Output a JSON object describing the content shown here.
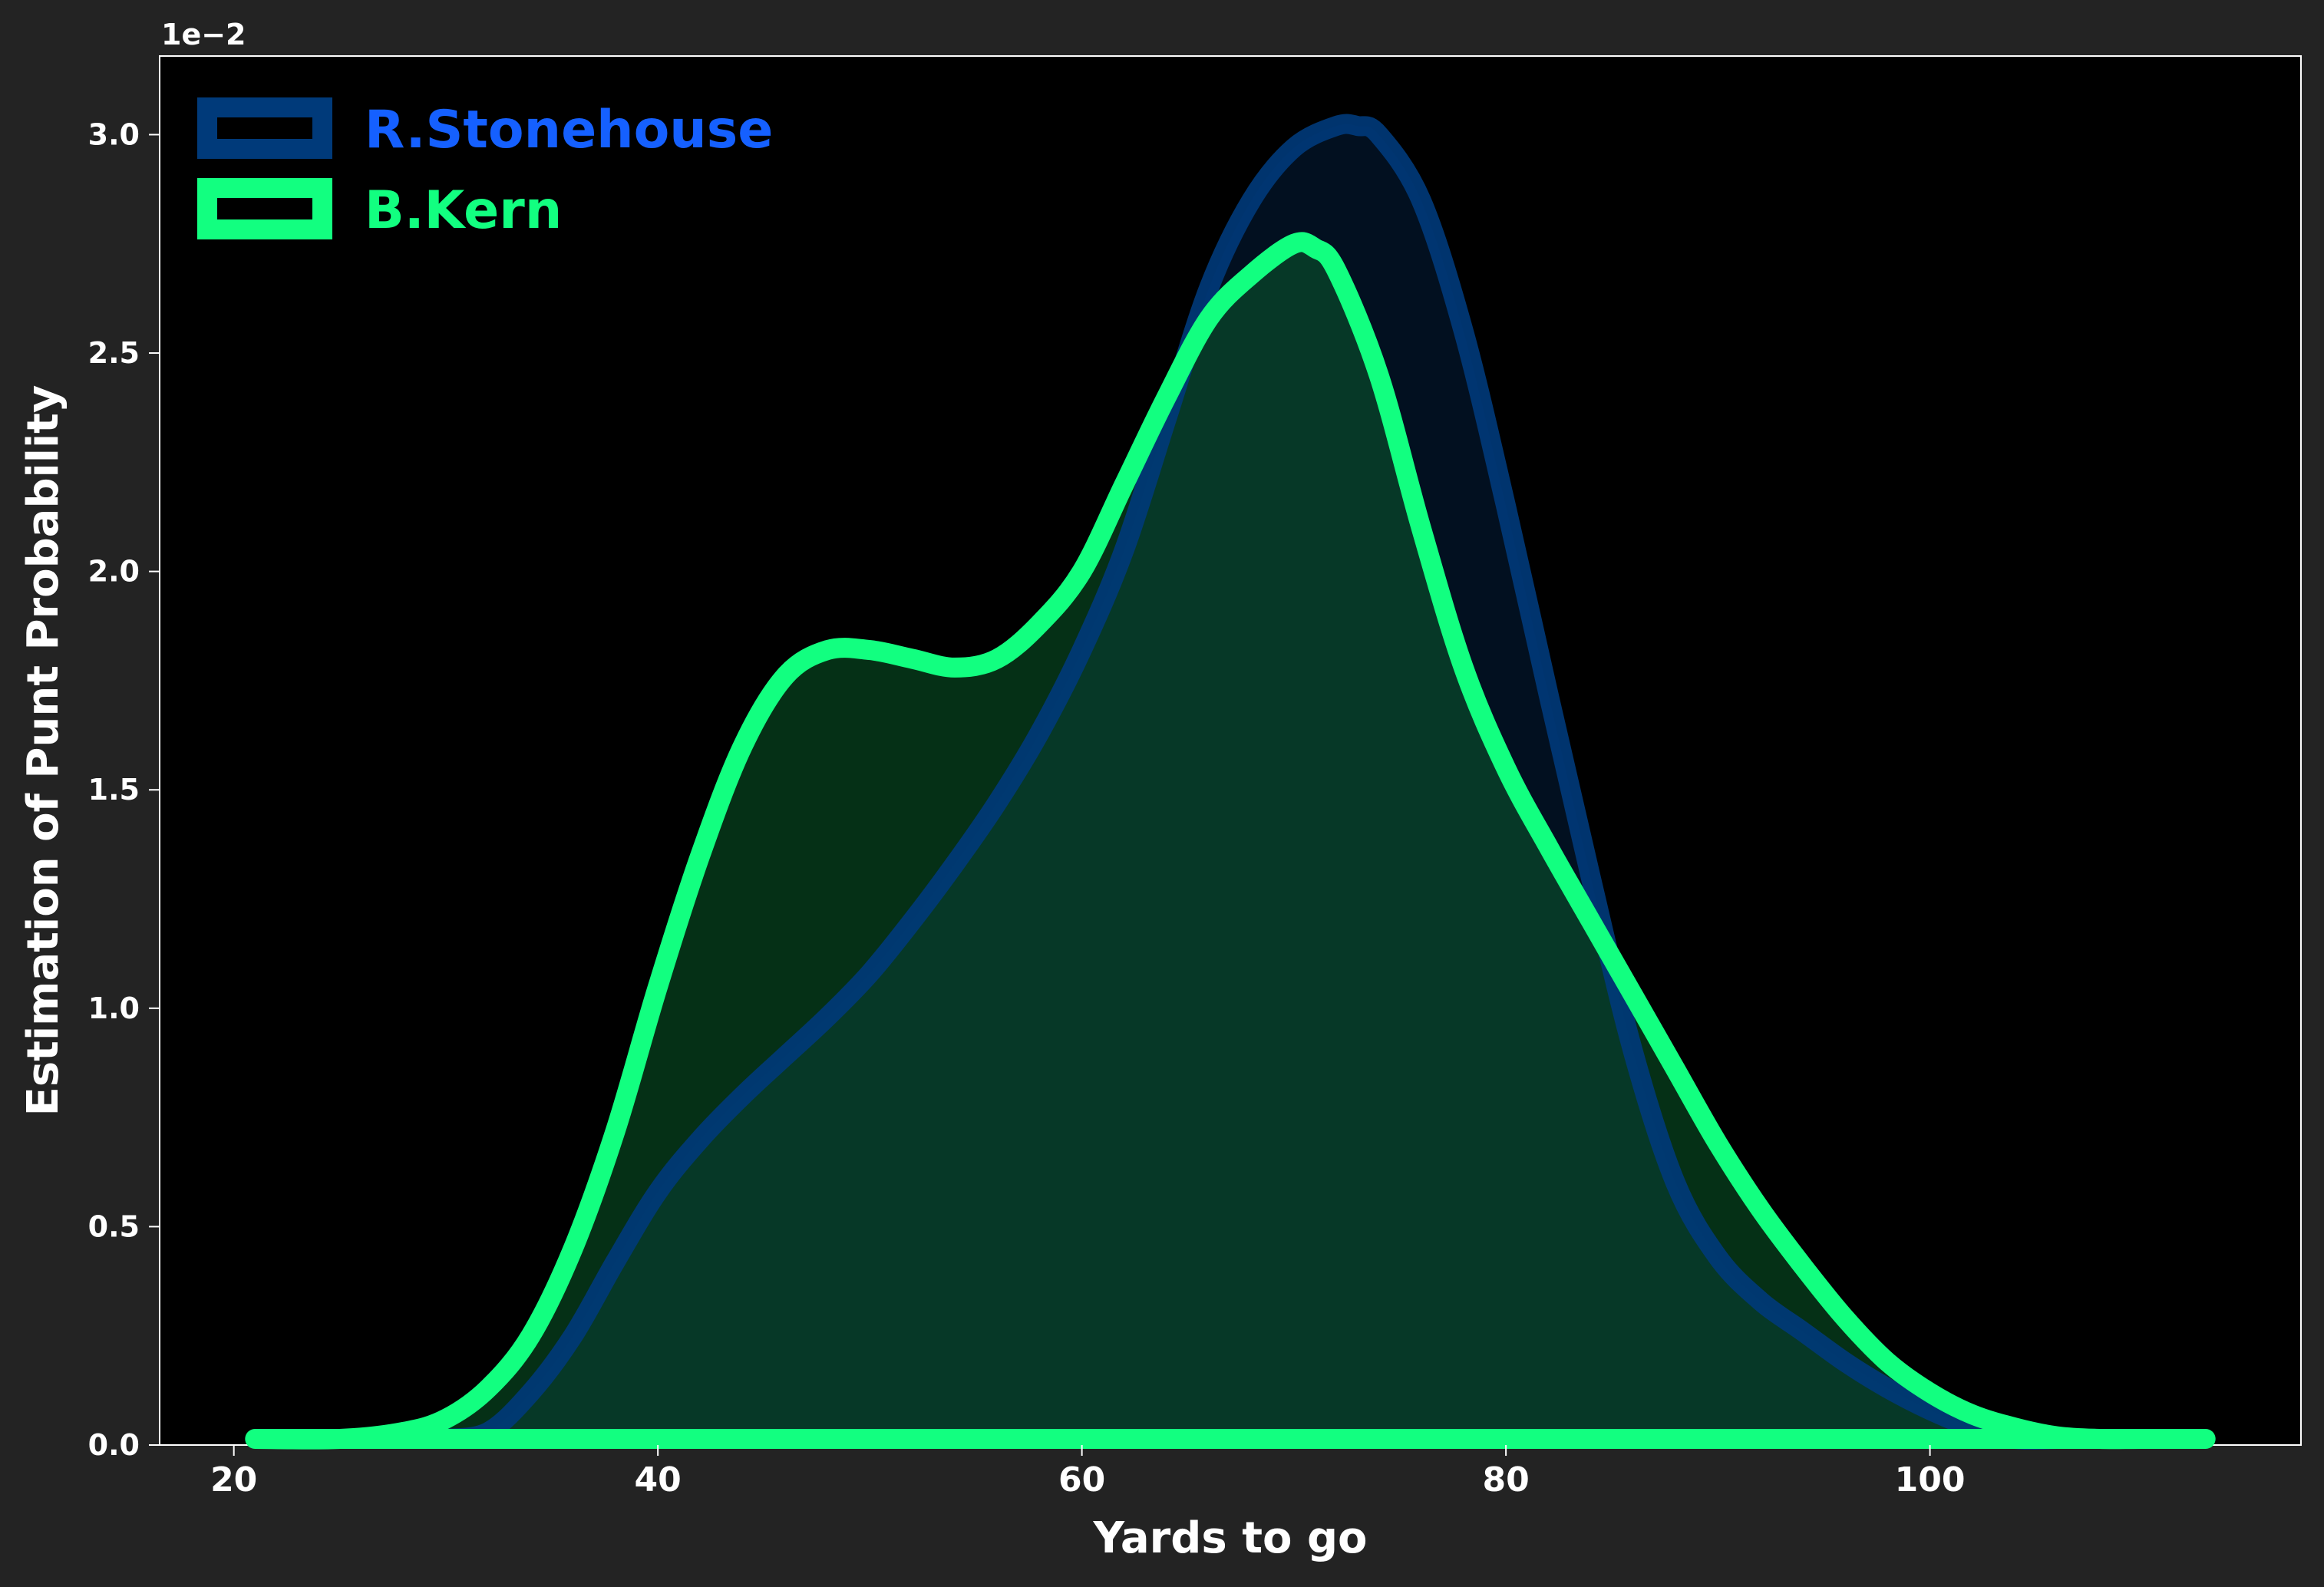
{
  "chart_data": {
    "type": "area",
    "xlabel": "Yards to go",
    "ylabel": "Estimation of Punt Probability",
    "y_offset_label": "1e−2",
    "xlim": [
      16.5,
      117.5
    ],
    "ylim": [
      0,
      3.18
    ],
    "x_ticks": [
      20,
      40,
      60,
      80,
      100
    ],
    "y_ticks": [
      0.0,
      0.5,
      1.0,
      1.5,
      2.0,
      2.5,
      3.0
    ],
    "legend_position": "top-left",
    "series": [
      {
        "name": "R.Stonehouse",
        "line_color": "#003a7a",
        "fill_color": "#0a4fa0",
        "legend_text_color": "#1560ff",
        "x": [
          30,
          32,
          34,
          36,
          38,
          40,
          42,
          44,
          46,
          48,
          50,
          52,
          54,
          56,
          58,
          60,
          62,
          64,
          66,
          68,
          70,
          72,
          73,
          74,
          76,
          78,
          80,
          82,
          84,
          86,
          88,
          90,
          92,
          94,
          96,
          98,
          100,
          102,
          104,
          106
        ],
        "values": [
          0.0,
          0.03,
          0.12,
          0.25,
          0.42,
          0.58,
          0.7,
          0.8,
          0.89,
          0.98,
          1.08,
          1.2,
          1.33,
          1.47,
          1.63,
          1.82,
          2.05,
          2.35,
          2.65,
          2.85,
          2.97,
          3.02,
          3.02,
          3.0,
          2.85,
          2.55,
          2.15,
          1.72,
          1.3,
          0.9,
          0.6,
          0.43,
          0.33,
          0.26,
          0.19,
          0.13,
          0.08,
          0.04,
          0.01,
          0.0
        ]
      },
      {
        "name": "B.Kern",
        "line_color": "#12ff80",
        "fill_color": "#0a6a30",
        "legend_text_color": "#12ff80",
        "x": [
          21,
          25,
          28,
          30,
          32,
          34,
          36,
          38,
          40,
          42,
          44,
          46,
          48,
          50,
          52,
          54,
          56,
          58,
          60,
          62,
          64,
          66,
          68,
          70,
          71,
          72,
          74,
          76,
          78,
          80,
          82,
          84,
          86,
          88,
          90,
          92,
          94,
          96,
          98,
          100,
          102,
          104,
          106,
          108,
          110,
          113
        ],
        "values": [
          0.0,
          0.01,
          0.03,
          0.06,
          0.13,
          0.25,
          0.45,
          0.72,
          1.05,
          1.35,
          1.6,
          1.76,
          1.82,
          1.82,
          1.8,
          1.78,
          1.8,
          1.88,
          2.0,
          2.2,
          2.4,
          2.58,
          2.68,
          2.75,
          2.74,
          2.69,
          2.45,
          2.1,
          1.78,
          1.55,
          1.37,
          1.2,
          1.03,
          0.86,
          0.69,
          0.54,
          0.41,
          0.29,
          0.19,
          0.12,
          0.07,
          0.04,
          0.02,
          0.01,
          0.0,
          0.0
        ]
      }
    ]
  }
}
